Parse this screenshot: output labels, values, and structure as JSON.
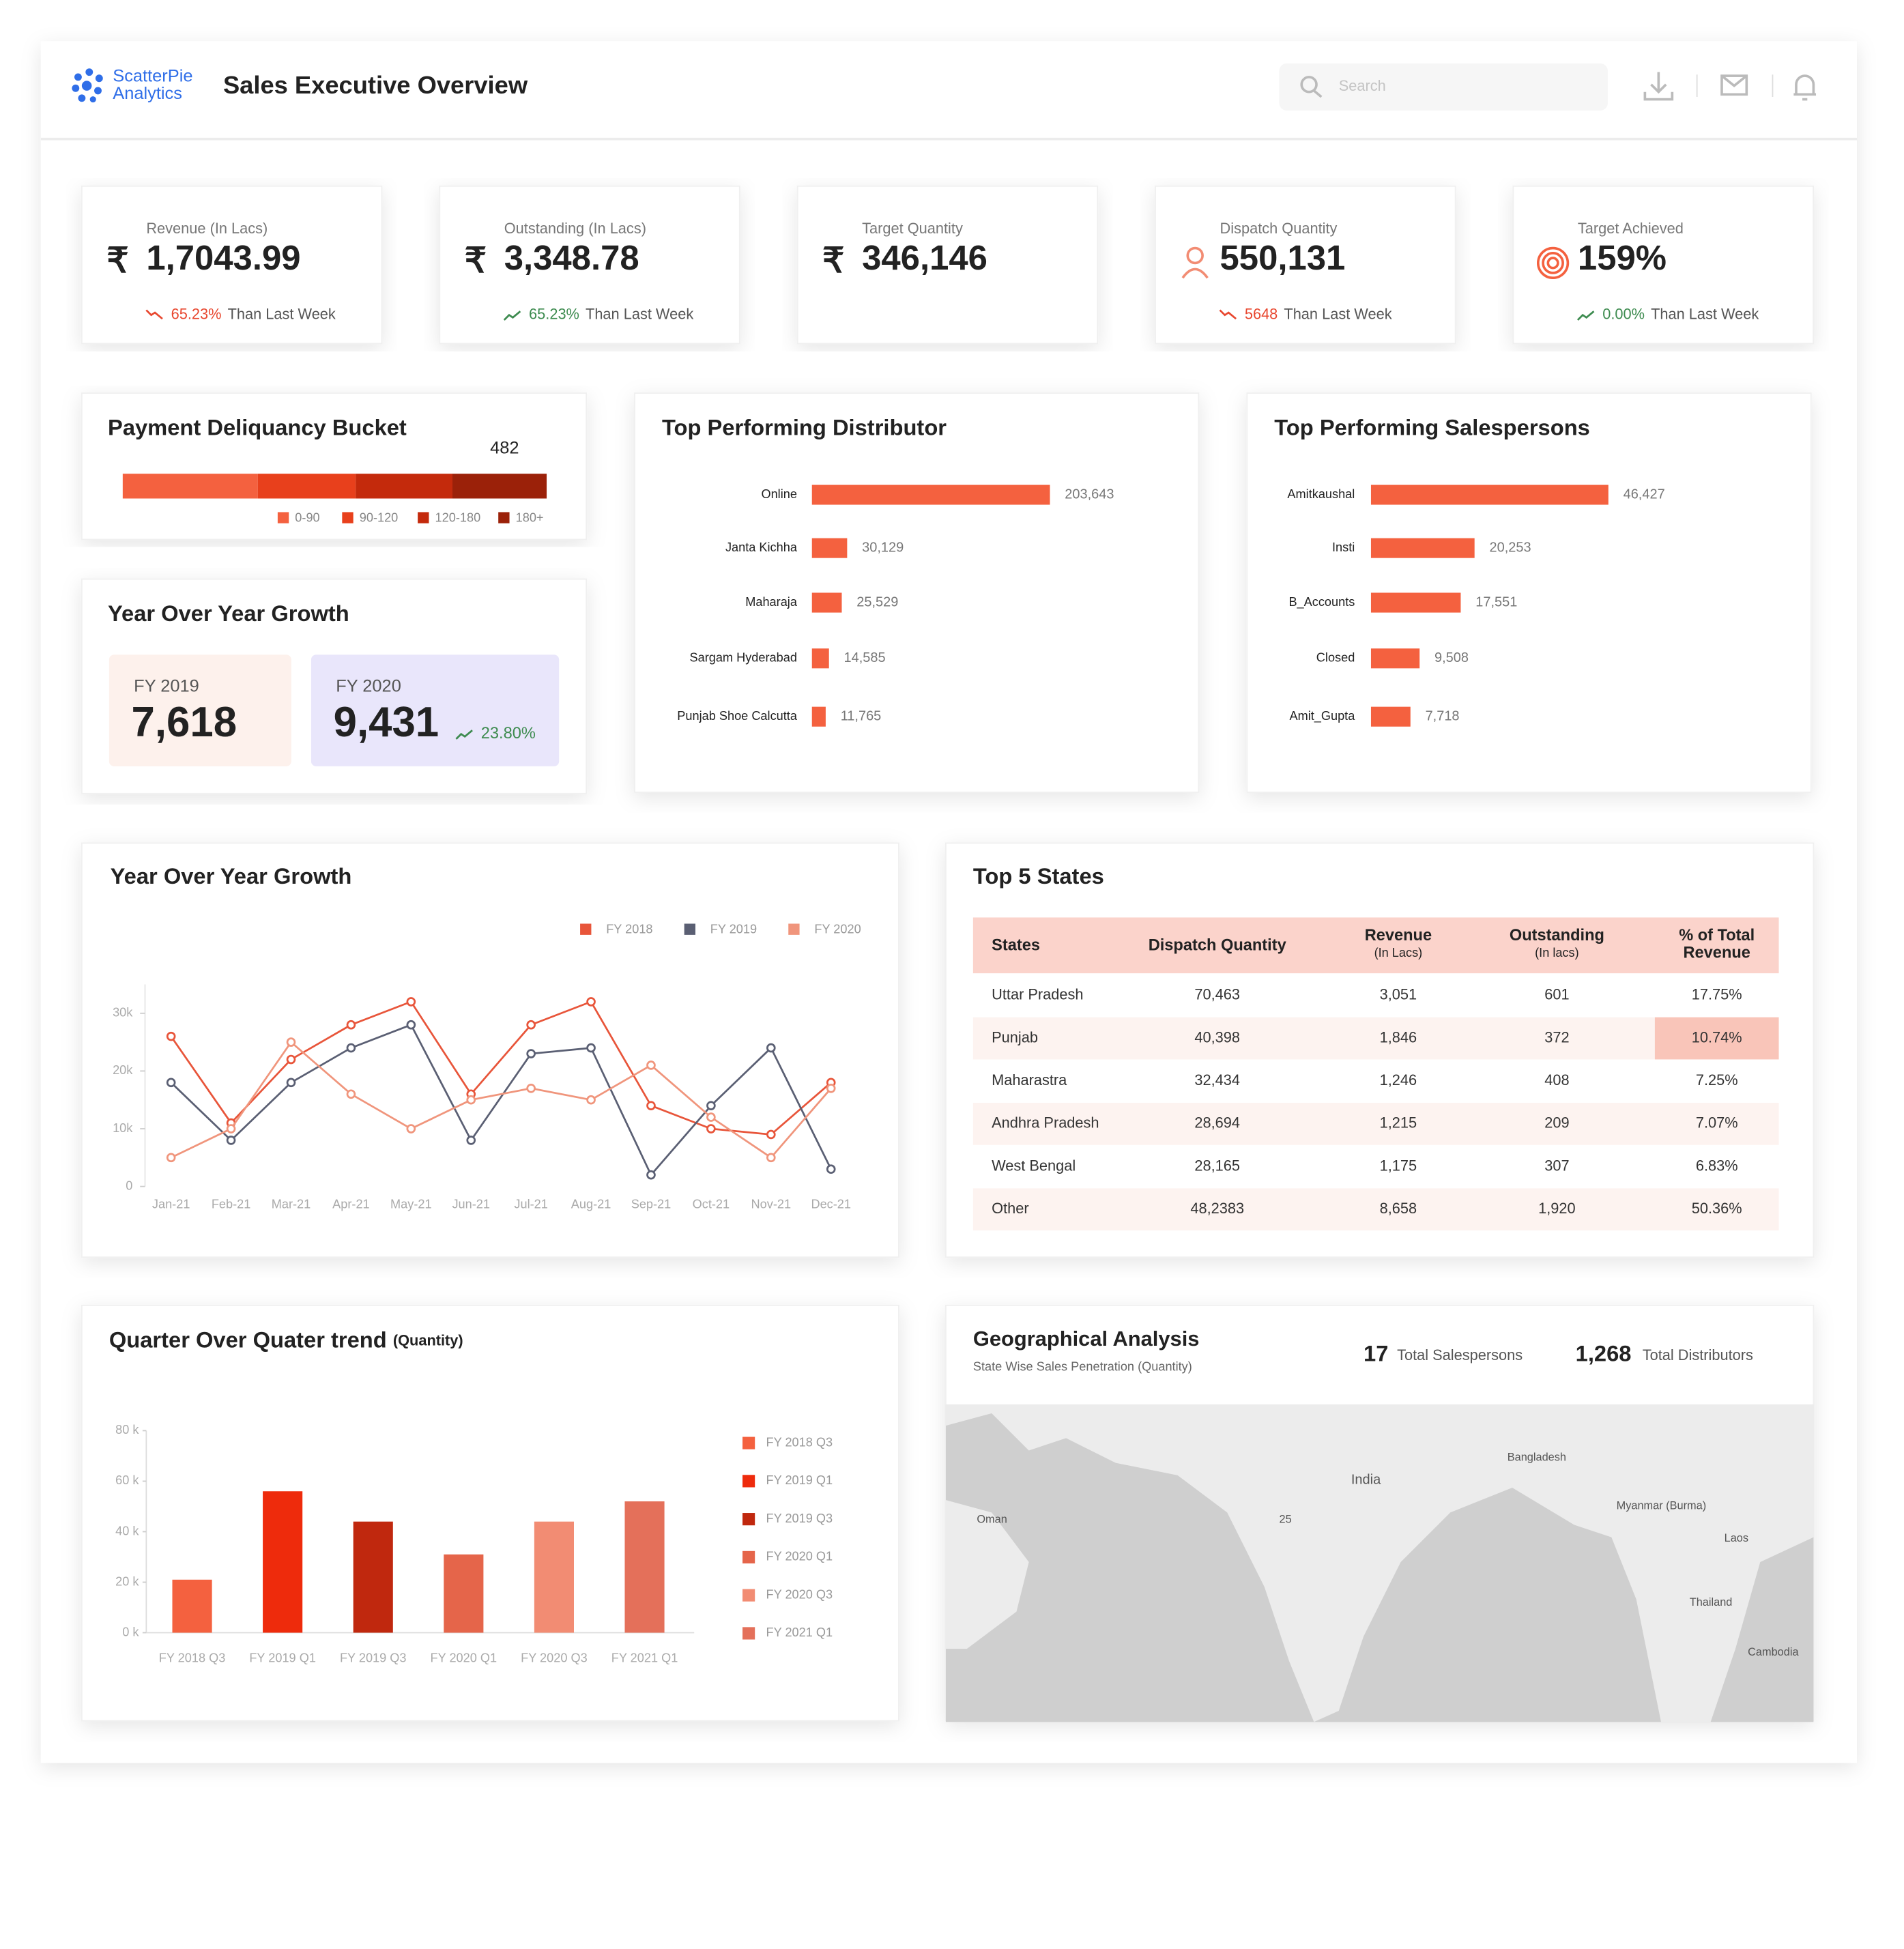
{
  "header": {
    "brand": [
      "ScatterPie",
      "Analytics"
    ],
    "title": "Sales Executive Overview",
    "search_placeholder": "Search"
  },
  "kpis": [
    {
      "label": "Revenue (In Lacs)",
      "prefix": "₹",
      "value": "1,7043.99",
      "change": "65.23%",
      "change_text": "Than Last Week",
      "change_color": "#e8472f",
      "trend": "down"
    },
    {
      "label": "Outstanding (In Lacs)",
      "prefix": "₹",
      "value": "3,348.78",
      "change": "65.23%",
      "change_text": "Than Last Week",
      "change_color": "#3d8b4f",
      "trend": "up"
    },
    {
      "label": "Target Quantity",
      "prefix": "₹",
      "value": "346,146"
    },
    {
      "label": "Dispatch Quantity",
      "value": "550,131",
      "change": "5648",
      "change_text": "Than Last Week",
      "change_color": "#e8472f",
      "trend": "down"
    },
    {
      "label": "Target Achieved",
      "value": "159%",
      "change": "0.00%",
      "change_text": "Than Last Week",
      "change_color": "#3d8b4f",
      "trend": "up"
    }
  ],
  "payment_bucket": {
    "title": "Payment Deliquancy Bucket",
    "categories": [
      "0-90",
      "90-120",
      "120-180",
      "180+"
    ],
    "values": [
      691,
      501,
      495,
      482
    ],
    "colors": [
      "#f4613f",
      "#e8401c",
      "#c42a0c",
      "#9b2109"
    ]
  },
  "yoy_summary": {
    "title": "Year Over Year Growth",
    "cards": [
      {
        "label": "FY 2019",
        "value": "7,618",
        "color": "#fdf1ec"
      },
      {
        "label": "FY 2020",
        "value": "9,431",
        "change": "23.80%",
        "change_color": "#3d8b4f",
        "color": "#e9e6fb"
      }
    ]
  },
  "top_distributors": {
    "type": "bar",
    "title": "Top Performing Distributor",
    "categories": [
      "Online",
      "Janta Kichha",
      "Maharaja",
      "Sargam Hyderabad",
      "Punjab Shoe Calcutta"
    ],
    "values": [
      203643,
      30129,
      25529,
      14585,
      11765
    ],
    "value_labels": [
      "203,643",
      "30,129",
      "25,529",
      "14,585",
      "11,765"
    ],
    "color": "#f4613f",
    "xlim": [
      0,
      210000
    ]
  },
  "top_salespersons": {
    "type": "bar",
    "title": "Top Performing Salespersons",
    "categories": [
      "Amitkaushal",
      "Insti",
      "B_Accounts",
      "Closed",
      "Amit_Gupta"
    ],
    "values": [
      46427,
      20253,
      17551,
      9508,
      7718
    ],
    "value_labels": [
      "46,427",
      "20,253",
      "17,551",
      "9,508",
      "7,718"
    ],
    "color": "#f4613f",
    "xlim": [
      0,
      48000
    ]
  },
  "yoy_trend": {
    "type": "line",
    "title": "Year Over Year Growth",
    "categories": [
      "Jan-21",
      "Feb-21",
      "Mar-21",
      "Apr-21",
      "May-21",
      "Jun-21",
      "Jul-21",
      "Aug-21",
      "Sep-21",
      "Oct-21",
      "Nov-21",
      "Dec-21"
    ],
    "series": [
      {
        "name": "FY 2018",
        "color": "#e8553a",
        "values": [
          26000,
          11000,
          22000,
          28000,
          32000,
          16000,
          28000,
          32000,
          14000,
          10000,
          9000,
          18000
        ]
      },
      {
        "name": "FY 2019",
        "color": "#5a5f73",
        "values": [
          18000,
          8000,
          18000,
          24000,
          28000,
          8000,
          23000,
          24000,
          2000,
          14000,
          24000,
          3000
        ]
      },
      {
        "name": "FY 2020",
        "color": "#f0957c",
        "values": [
          5000,
          10000,
          25000,
          16000,
          10000,
          15000,
          17000,
          15000,
          21000,
          12000,
          5000,
          17000
        ]
      }
    ],
    "ylim": [
      0,
      35000
    ],
    "yticks": [
      0,
      {
        "value": 10000,
        "label": "10k"
      },
      {
        "value": 20000,
        "label": "20k"
      },
      {
        "value": 30000,
        "label": "30k"
      }
    ],
    "legend": "top-right"
  },
  "quarter_trend": {
    "type": "bar",
    "title": "Quarter Over Quater trend",
    "subtitle": "(Quantity)",
    "categories": [
      "FY 2018 Q3",
      "FY 2019 Q1",
      "FY 2019 Q3",
      "FY 2020 Q1",
      "FY 2020 Q3",
      "FY 2021 Q1"
    ],
    "values": [
      21000,
      56000,
      44000,
      31000,
      44000,
      52000
    ],
    "colors": [
      "#f4613f",
      "#ee2b0c",
      "#c0280e",
      "#e5654a",
      "#f28c73",
      "#e4705a"
    ],
    "ylim": [
      0,
      80000
    ],
    "yticks": [
      {
        "value": 0,
        "label": "0 k"
      },
      {
        "value": 20000,
        "label": "20 k"
      },
      {
        "value": 40000,
        "label": "40 k"
      },
      {
        "value": 60000,
        "label": "60 k"
      },
      {
        "value": 80000,
        "label": "80 k"
      }
    ]
  },
  "top_states": {
    "title": "Top 5 States",
    "columns": [
      {
        "title": "States"
      },
      {
        "title": "Dispatch Quantity"
      },
      {
        "title": "Revenue",
        "sub": "(In Lacs)"
      },
      {
        "title": "Outstanding",
        "sub": "(In lacs)"
      },
      {
        "title": "% of Total",
        "sub": "Revenue"
      }
    ],
    "rows": [
      [
        "Uttar Pradesh",
        "70,463",
        "3,051",
        "601",
        "17.75%"
      ],
      [
        "Punjab",
        "40,398",
        "1,846",
        "372",
        "10.74%"
      ],
      [
        "Maharastra",
        "32,434",
        "1,246",
        "408",
        "7.25%"
      ],
      [
        "Andhra Pradesh",
        "28,694",
        "1,215",
        "209",
        "7.07%"
      ],
      [
        "West Bengal",
        "28,165",
        "1,175",
        "307",
        "6.83%"
      ],
      [
        "Other",
        "48,2383",
        "8,658",
        "1,920",
        "50.36%"
      ]
    ],
    "highlight": {
      "row": 1,
      "col": 4,
      "color": "#f9c5b9"
    }
  },
  "geo": {
    "title": "Geographical Analysis",
    "subtitle": "State Wise Sales Penetration (Quantity)",
    "stats": [
      {
        "value": "17",
        "label": "Total Salespersons"
      },
      {
        "value": "1,268",
        "label": "Total Distributors"
      }
    ],
    "map_labels": [
      "India",
      "Oman",
      "Bangladesh",
      "Myanmar (Burma)",
      "Laos",
      "Thailand",
      "Cambodia",
      "25"
    ]
  }
}
